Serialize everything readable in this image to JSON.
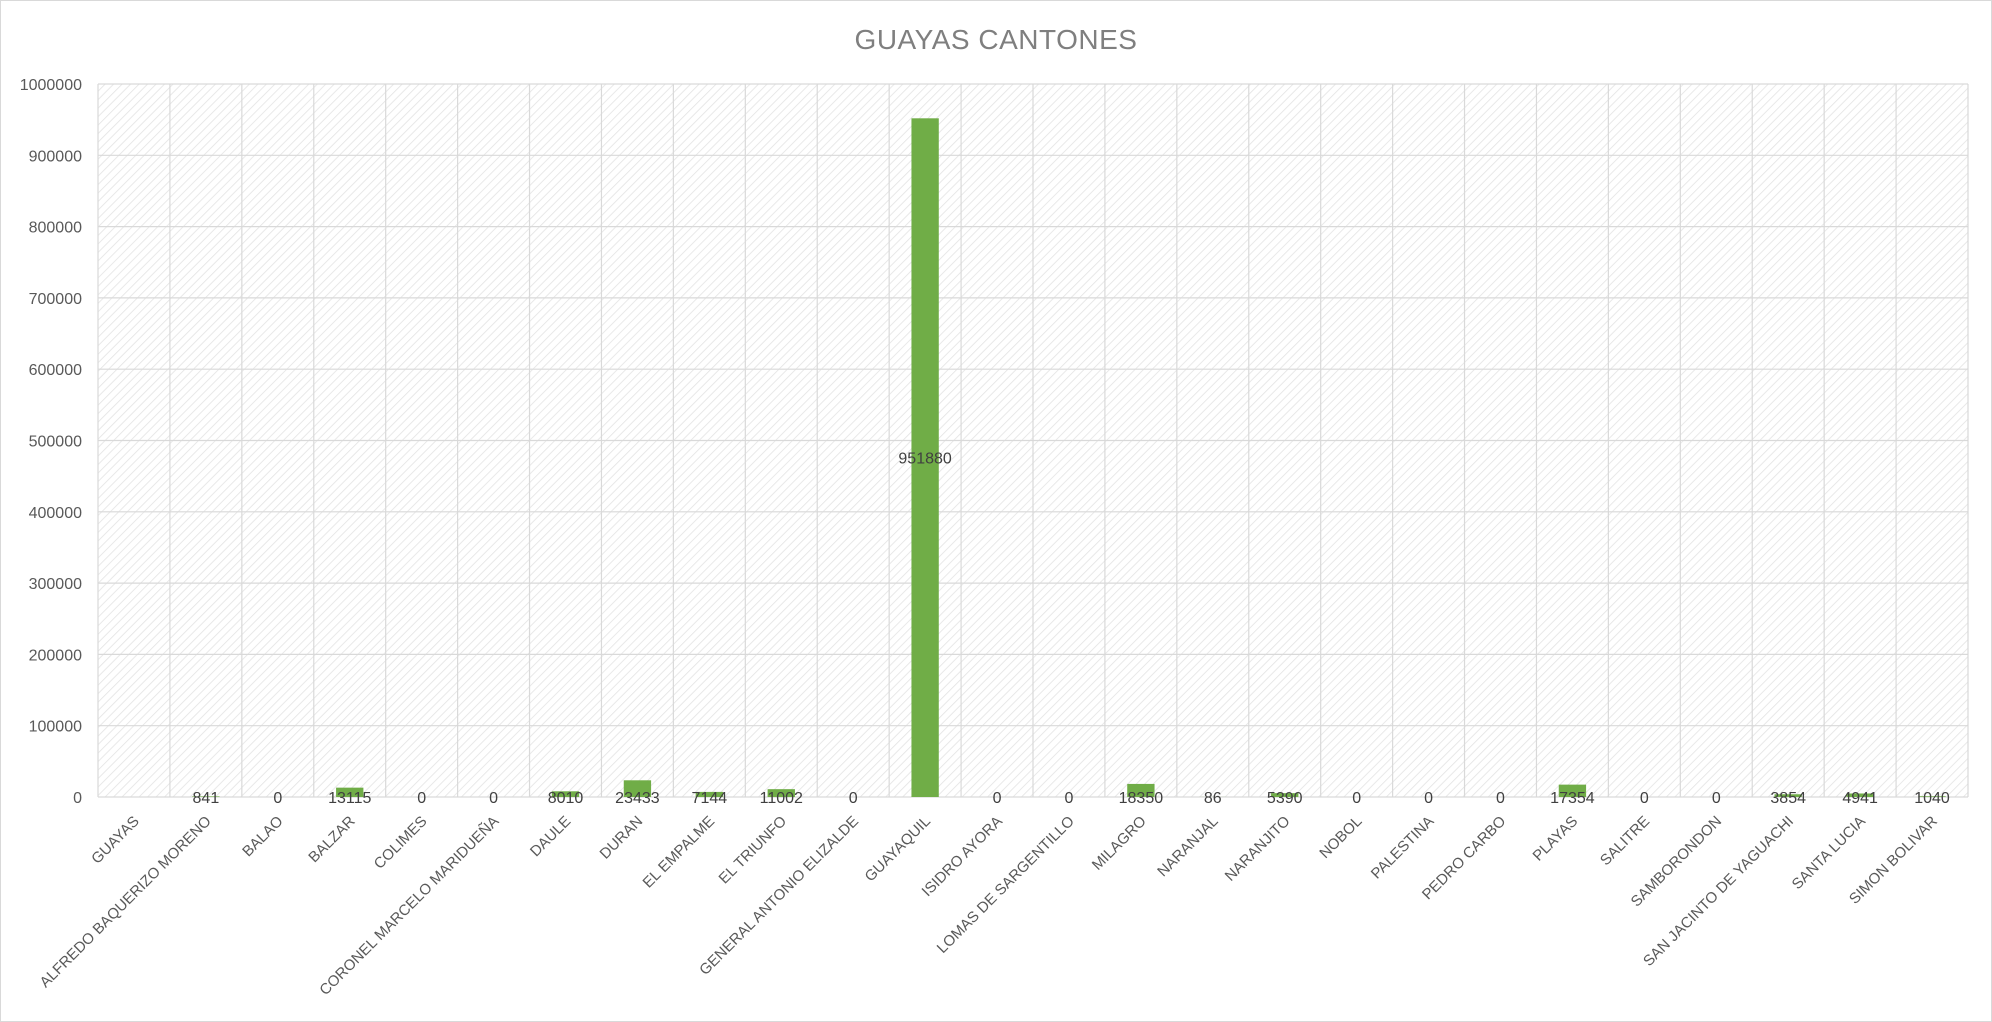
{
  "chart_data": {
    "type": "bar",
    "title": "GUAYAS CANTONES",
    "xlabel": "",
    "ylabel": "",
    "ylim": [
      0,
      1000000
    ],
    "yticks": [
      0,
      100000,
      200000,
      300000,
      400000,
      500000,
      600000,
      700000,
      800000,
      900000,
      1000000
    ],
    "grid": true,
    "legend": "none",
    "bar_color": "#70ad47",
    "categories": [
      "GUAYAS",
      "ALFREDO BAQUERIZO MORENO",
      "BALAO",
      "BALZAR",
      "COLIMES",
      "CORONEL MARCELO MARIDUEÑA",
      "DAULE",
      "DURAN",
      "EL EMPALME",
      "EL TRIUNFO",
      "GENERAL ANTONIO ELIZALDE",
      "GUAYAQUIL",
      "ISIDRO AYORA",
      "LOMAS DE SARGENTILLO",
      "MILAGRO",
      "NARANJAL",
      "NARANJITO",
      "NOBOL",
      "PALESTINA",
      "PEDRO CARBO",
      "PLAYAS",
      "SALITRE",
      "SAMBORONDON",
      "SAN JACINTO DE YAGUACHI",
      "SANTA LUCIA",
      "SIMON BOLIVAR"
    ],
    "values": [
      null,
      841,
      0,
      13115,
      0,
      0,
      8010,
      23433,
      7144,
      11002,
      0,
      951880,
      0,
      0,
      18350,
      86,
      5390,
      0,
      0,
      0,
      17354,
      0,
      0,
      3854,
      4941,
      1040
    ]
  }
}
